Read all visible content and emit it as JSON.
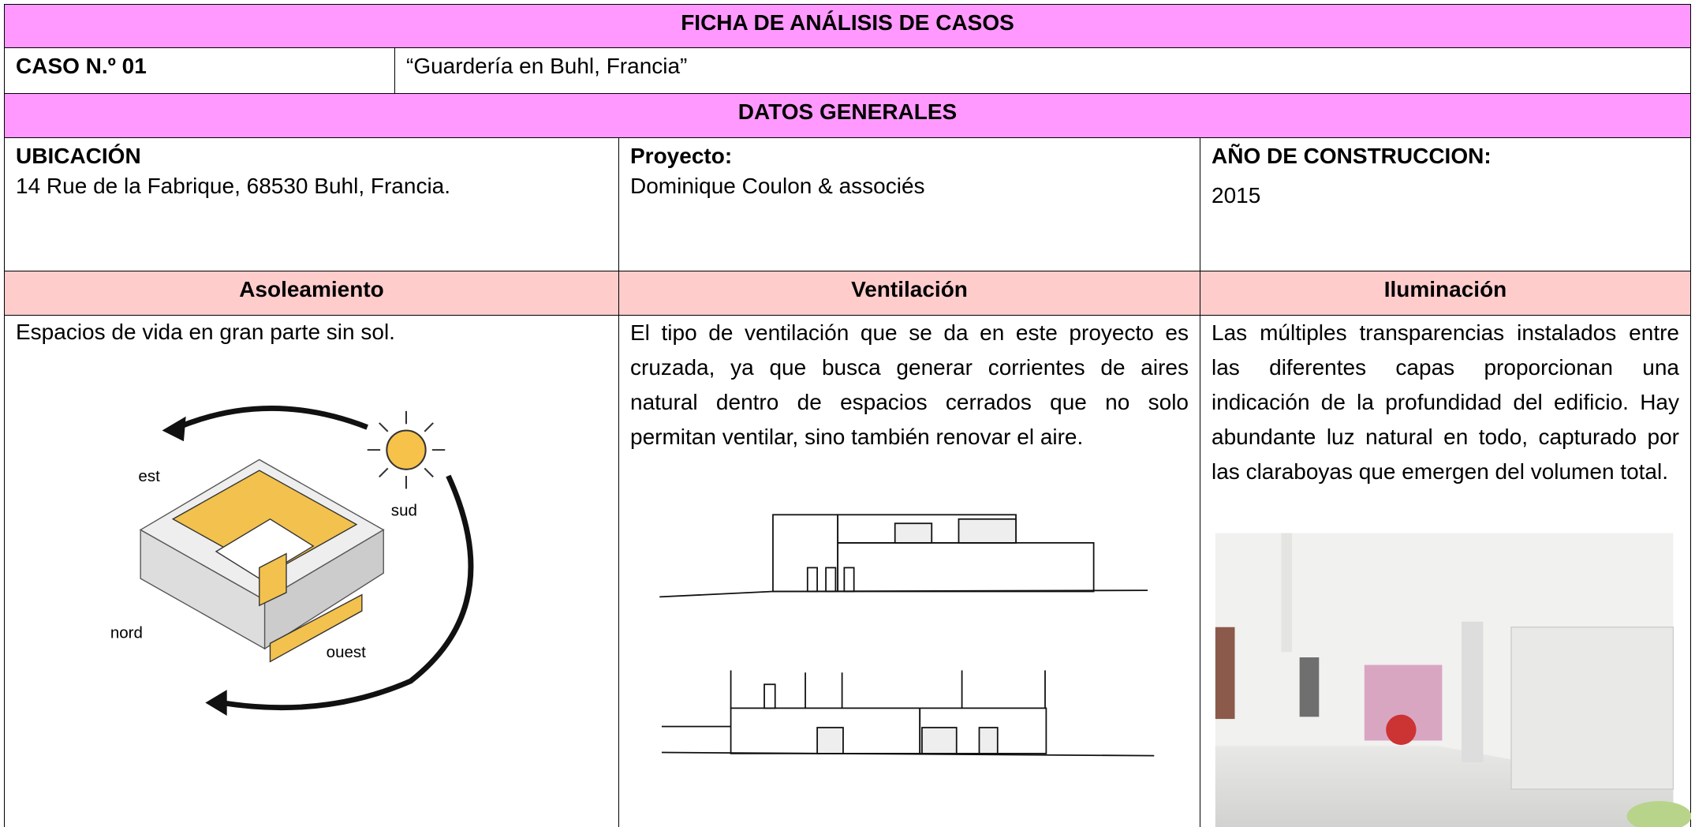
{
  "title": "FICHA DE ANÁLISIS DE CASOS",
  "case": {
    "label": "CASO N.º 01",
    "name": "“Guardería en Buhl, Francia”"
  },
  "section": "DATOS GENERALES",
  "general": {
    "ubicacion": {
      "label": "UBICACIÓN",
      "text": "14 Rue de la Fabrique, 68530 Buhl, Francia."
    },
    "proyecto": {
      "label": "Proyecto:",
      "text": "Dominique Coulon & associés"
    },
    "anio": {
      "label": "AÑO DE CONSTRUCCION:",
      "text": "2015"
    }
  },
  "headers": [
    "Asoleamiento",
    "Ventilación",
    "Iluminación"
  ],
  "asoleamiento": {
    "text": "Espacios de vida en gran parte sin sol.",
    "labels": [
      "est",
      "sud",
      "nord",
      "ouest"
    ]
  },
  "ventilacion": {
    "text": "El tipo de ventilación que se da en este proyecto es cruzada, ya que busca generar corrientes de aires natural dentro de espacios cerrados que no solo permitan ventilar, sino también renovar el aire."
  },
  "iluminacion": {
    "text": " Las múltiples transparencias instalados entre las diferentes capas proporcionan una indicación de la profundidad del edificio. Hay abundante luz natural en todo, capturado por las claraboyas que emergen del volumen total."
  }
}
